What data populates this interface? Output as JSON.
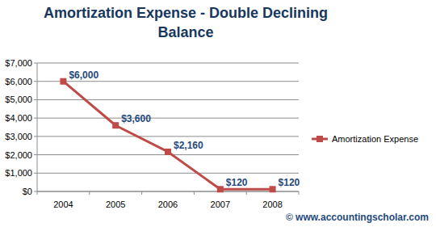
{
  "chart_data": {
    "type": "line",
    "title": "Amortization Expense - Double Declining Balance",
    "categories": [
      "2004",
      "2005",
      "2006",
      "2007",
      "2008"
    ],
    "series": [
      {
        "name": "Amortization Expense",
        "color": "#be4b48",
        "marker": "square",
        "values": [
          6000,
          3600,
          2160,
          120,
          120
        ],
        "value_labels": [
          "$6,000",
          "$3,600",
          "$2,160",
          "$120",
          "$120"
        ]
      }
    ],
    "ylim": [
      0,
      7000
    ],
    "yticks": [
      {
        "value": 0,
        "label": "$0"
      },
      {
        "value": 1000,
        "label": "$1,000"
      },
      {
        "value": 2000,
        "label": "$2,000"
      },
      {
        "value": 3000,
        "label": "$3,000"
      },
      {
        "value": 4000,
        "label": "$4,000"
      },
      {
        "value": 5000,
        "label": "$5,000"
      },
      {
        "value": 6000,
        "label": "$6,000"
      },
      {
        "value": 7000,
        "label": "$7,000"
      }
    ],
    "grid": true,
    "legend": "right",
    "data_labels": true,
    "annotations": [
      "© www.accountingscholar.com"
    ]
  }
}
